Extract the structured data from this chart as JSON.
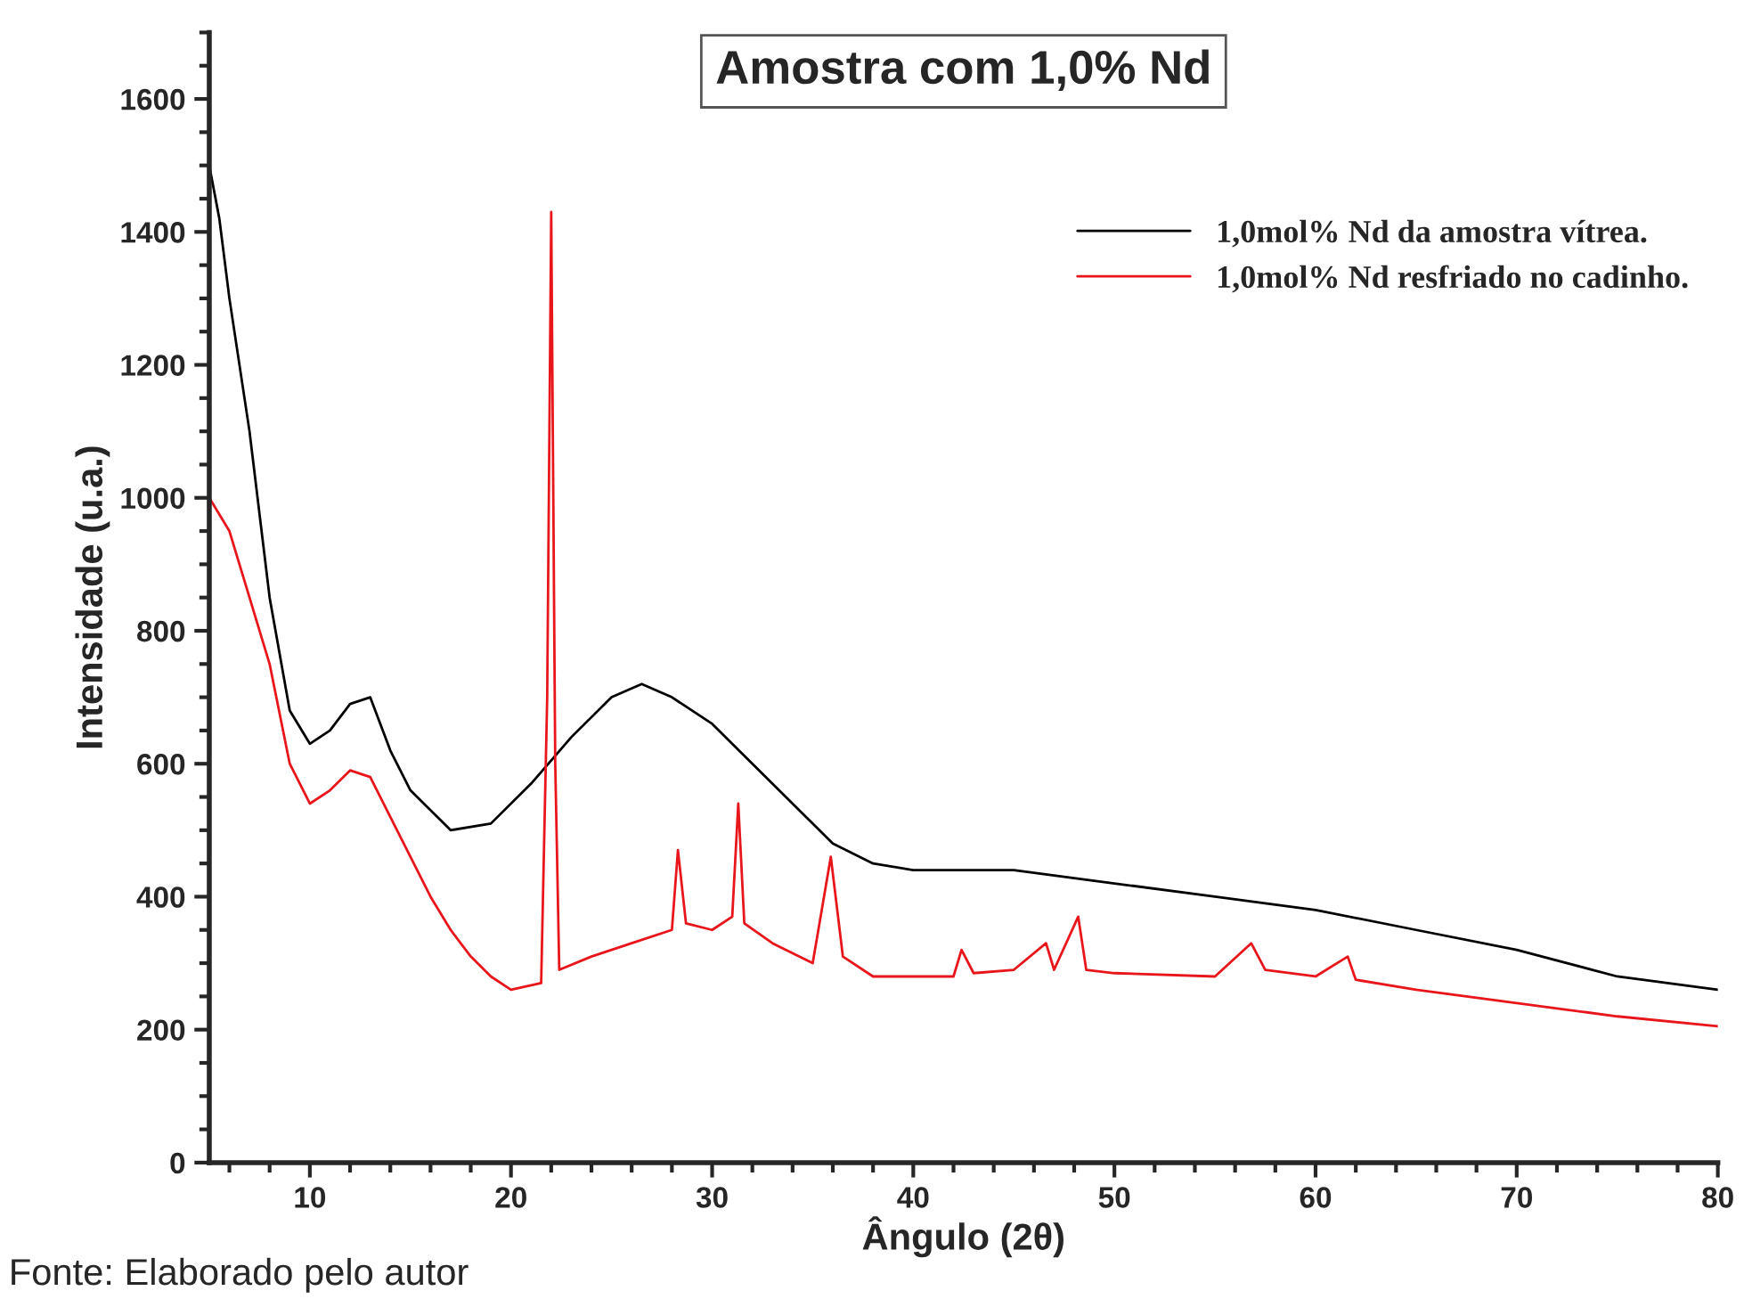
{
  "chart_data": {
    "type": "line",
    "title": "Amostra com 1,0% Nd",
    "xlabel": "Ângulo (2θ)",
    "ylabel": "Intensidade (u.a.)",
    "xlim": [
      5,
      80
    ],
    "xticks": [
      10,
      20,
      30,
      40,
      50,
      60,
      70,
      80
    ],
    "ylim": [
      0,
      1700
    ],
    "yticks": [
      0,
      200,
      400,
      600,
      800,
      1000,
      1200,
      1400,
      1600
    ],
    "grid": false,
    "legend": "top right",
    "marker": "none",
    "line_style": "solid",
    "annotations": [
      "Fonte: Elaborado pelo autor"
    ],
    "series": [
      {
        "name": "1,0mol% Nd da amostra vítrea.",
        "color": "#000000",
        "x": [
          5,
          5.5,
          6,
          7,
          8,
          9,
          10,
          11,
          12,
          13,
          14,
          15,
          17,
          19,
          21,
          23,
          25,
          26.5,
          28,
          30,
          32,
          34,
          36,
          38,
          40,
          45,
          50,
          55,
          60,
          65,
          70,
          75,
          80
        ],
        "values": [
          1500,
          1420,
          1300,
          1100,
          850,
          680,
          630,
          650,
          690,
          700,
          620,
          560,
          500,
          510,
          570,
          640,
          700,
          720,
          700,
          660,
          600,
          540,
          480,
          450,
          440,
          440,
          420,
          400,
          380,
          350,
          320,
          280,
          260
        ]
      },
      {
        "name": "1,0mol% Nd resfriado no cadinho.",
        "color": "#e8161b",
        "x": [
          5,
          6,
          7,
          8,
          9,
          10,
          11,
          12,
          13,
          14,
          15,
          16,
          17,
          18,
          19,
          20,
          21.5,
          21.8,
          22,
          22.2,
          22.4,
          24,
          26,
          28,
          28.3,
          28.7,
          30,
          31,
          31.3,
          31.6,
          33,
          35,
          35.9,
          36.5,
          38,
          40,
          42,
          42.4,
          43,
          45,
          46.6,
          47,
          48.2,
          48.6,
          50,
          55,
          56.8,
          57.5,
          60,
          61.6,
          62,
          65,
          70,
          75,
          80
        ],
        "values": [
          1000,
          950,
          850,
          750,
          600,
          540,
          560,
          590,
          580,
          520,
          460,
          400,
          350,
          310,
          280,
          260,
          270,
          700,
          1430,
          600,
          290,
          310,
          330,
          350,
          470,
          360,
          350,
          370,
          540,
          360,
          330,
          300,
          460,
          310,
          280,
          280,
          280,
          320,
          285,
          290,
          330,
          290,
          370,
          290,
          285,
          280,
          330,
          290,
          280,
          310,
          275,
          260,
          240,
          220,
          205
        ]
      }
    ]
  }
}
